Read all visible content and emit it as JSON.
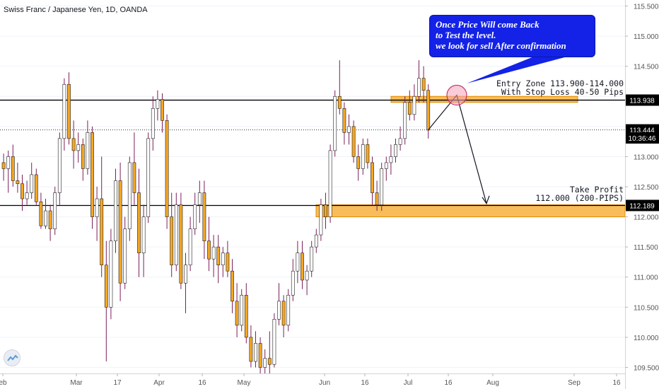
{
  "header": {
    "title": "Swiss Franc / Japanese Yen, 1D, OANDA"
  },
  "note": {
    "lines": [
      "Once Price Will come Back",
      "to Test the level.",
      "we look for sell After confirmation"
    ],
    "color": "#1322e6"
  },
  "entry": {
    "line1": "Entry Zone 113.900-114.000",
    "line2": "With Stop Loss 40-50 Pips"
  },
  "take_profit": {
    "line1": "Take Profit",
    "line2": "112.000 (200-PIPS)"
  },
  "colors": {
    "bull": "#ffffff",
    "bear": "#f5a623",
    "wick": "#7b1f5a",
    "outline": "#222222",
    "zone": "#f5a623",
    "axis_text": "#555555",
    "tag_black": "#000000"
  },
  "price_tags": [
    {
      "value": 113.938,
      "label": "113.938",
      "style": "black"
    },
    {
      "value": 113.444,
      "label": "113.444",
      "style": "black"
    },
    {
      "value": 113.31,
      "label": "10:36:46",
      "style": "black"
    },
    {
      "value": 112.189,
      "label": "112.189",
      "style": "black"
    }
  ],
  "chart_data": {
    "type": "candlestick",
    "title": "Swiss Franc / Japanese Yen, 1D, OANDA",
    "ylim": [
      109.4,
      115.6
    ],
    "y_ticks": [
      "115.500",
      "115.000",
      "114.500",
      "114.000",
      "113.500",
      "113.000",
      "112.500",
      "112.000",
      "111.500",
      "111.000",
      "110.500",
      "110.000",
      "109.500"
    ],
    "x_ticks": [
      "eb",
      "Mar",
      "17",
      "Apr",
      "16",
      "May",
      "Jun",
      "16",
      "Jul",
      "16",
      "Aug",
      "Sep",
      "16"
    ],
    "levels": [
      {
        "name": "resistance",
        "value": 113.938
      },
      {
        "name": "last-price",
        "value": 113.444
      },
      {
        "name": "support",
        "value": 112.189
      }
    ],
    "zones": [
      {
        "name": "entry-zone",
        "from": 113.9,
        "to": 114.0
      },
      {
        "name": "take-profit-zone",
        "from": 112.0,
        "to": 112.2
      }
    ],
    "candles": [
      {
        "o": 112.9,
        "h": 113.05,
        "l": 112.6,
        "c": 112.8
      },
      {
        "o": 112.8,
        "h": 113.1,
        "l": 112.4,
        "c": 113.0
      },
      {
        "o": 113.0,
        "h": 113.2,
        "l": 112.5,
        "c": 112.6
      },
      {
        "o": 112.6,
        "h": 112.9,
        "l": 112.4,
        "c": 112.55
      },
      {
        "o": 112.55,
        "h": 112.7,
        "l": 112.1,
        "c": 112.3
      },
      {
        "o": 112.3,
        "h": 112.6,
        "l": 112.2,
        "c": 112.4
      },
      {
        "o": 112.4,
        "h": 112.9,
        "l": 112.3,
        "c": 112.7
      },
      {
        "o": 112.7,
        "h": 112.8,
        "l": 112.2,
        "c": 112.25
      },
      {
        "o": 112.25,
        "h": 112.4,
        "l": 111.8,
        "c": 111.85
      },
      {
        "o": 111.85,
        "h": 112.3,
        "l": 111.8,
        "c": 112.1
      },
      {
        "o": 112.1,
        "h": 112.2,
        "l": 111.6,
        "c": 111.8
      },
      {
        "o": 111.8,
        "h": 112.5,
        "l": 111.7,
        "c": 112.4
      },
      {
        "o": 112.4,
        "h": 113.4,
        "l": 112.2,
        "c": 113.3
      },
      {
        "o": 113.3,
        "h": 114.3,
        "l": 113.1,
        "c": 114.2
      },
      {
        "o": 114.2,
        "h": 114.4,
        "l": 113.2,
        "c": 113.3
      },
      {
        "o": 113.3,
        "h": 113.6,
        "l": 112.8,
        "c": 113.1
      },
      {
        "o": 113.1,
        "h": 113.4,
        "l": 112.9,
        "c": 113.2
      },
      {
        "o": 113.2,
        "h": 113.3,
        "l": 112.6,
        "c": 112.8
      },
      {
        "o": 112.8,
        "h": 113.6,
        "l": 112.7,
        "c": 113.4
      },
      {
        "o": 113.4,
        "h": 113.5,
        "l": 111.8,
        "c": 112.0
      },
      {
        "o": 112.0,
        "h": 112.5,
        "l": 111.6,
        "c": 112.3
      },
      {
        "o": 112.3,
        "h": 113.0,
        "l": 111.0,
        "c": 111.2
      },
      {
        "o": 111.2,
        "h": 111.6,
        "l": 109.6,
        "c": 110.5
      },
      {
        "o": 110.5,
        "h": 111.8,
        "l": 110.3,
        "c": 111.6
      },
      {
        "o": 111.6,
        "h": 112.8,
        "l": 111.4,
        "c": 112.6
      },
      {
        "o": 112.6,
        "h": 112.9,
        "l": 110.6,
        "c": 110.9
      },
      {
        "o": 110.9,
        "h": 112.0,
        "l": 110.8,
        "c": 111.8
      },
      {
        "o": 111.8,
        "h": 113.0,
        "l": 111.6,
        "c": 112.9
      },
      {
        "o": 112.9,
        "h": 113.4,
        "l": 112.2,
        "c": 112.4
      },
      {
        "o": 112.4,
        "h": 112.8,
        "l": 111.0,
        "c": 111.4
      },
      {
        "o": 111.4,
        "h": 112.2,
        "l": 111.0,
        "c": 112.0
      },
      {
        "o": 112.0,
        "h": 113.4,
        "l": 111.9,
        "c": 113.3
      },
      {
        "o": 113.3,
        "h": 114.0,
        "l": 113.1,
        "c": 113.8
      },
      {
        "o": 113.8,
        "h": 114.1,
        "l": 113.6,
        "c": 113.95
      },
      {
        "o": 113.95,
        "h": 114.05,
        "l": 113.4,
        "c": 113.6
      },
      {
        "o": 113.6,
        "h": 113.7,
        "l": 111.8,
        "c": 112.0
      },
      {
        "o": 112.0,
        "h": 112.4,
        "l": 111.0,
        "c": 111.2
      },
      {
        "o": 111.2,
        "h": 112.4,
        "l": 111.1,
        "c": 112.2
      },
      {
        "o": 112.2,
        "h": 112.4,
        "l": 110.8,
        "c": 110.9
      },
      {
        "o": 110.9,
        "h": 111.4,
        "l": 110.4,
        "c": 111.2
      },
      {
        "o": 111.2,
        "h": 112.0,
        "l": 111.1,
        "c": 111.8
      },
      {
        "o": 111.8,
        "h": 112.4,
        "l": 111.7,
        "c": 112.2
      },
      {
        "o": 112.2,
        "h": 112.6,
        "l": 111.9,
        "c": 112.4
      },
      {
        "o": 112.4,
        "h": 112.6,
        "l": 111.3,
        "c": 111.6
      },
      {
        "o": 111.6,
        "h": 112.0,
        "l": 111.1,
        "c": 111.3
      },
      {
        "o": 111.3,
        "h": 111.7,
        "l": 111.0,
        "c": 111.5
      },
      {
        "o": 111.5,
        "h": 111.7,
        "l": 110.9,
        "c": 111.2
      },
      {
        "o": 111.2,
        "h": 111.5,
        "l": 111.0,
        "c": 111.4
      },
      {
        "o": 111.4,
        "h": 111.6,
        "l": 111.0,
        "c": 111.1
      },
      {
        "o": 111.1,
        "h": 111.3,
        "l": 110.4,
        "c": 110.6
      },
      {
        "o": 110.6,
        "h": 110.9,
        "l": 110.0,
        "c": 110.2
      },
      {
        "o": 110.2,
        "h": 110.8,
        "l": 110.1,
        "c": 110.7
      },
      {
        "o": 110.7,
        "h": 110.9,
        "l": 109.9,
        "c": 110.0
      },
      {
        "o": 110.0,
        "h": 110.2,
        "l": 109.5,
        "c": 109.6
      },
      {
        "o": 109.6,
        "h": 110.1,
        "l": 109.5,
        "c": 109.9
      },
      {
        "o": 109.9,
        "h": 110.0,
        "l": 109.4,
        "c": 109.5
      },
      {
        "o": 109.5,
        "h": 109.8,
        "l": 109.4,
        "c": 109.65
      },
      {
        "o": 109.65,
        "h": 110.1,
        "l": 109.4,
        "c": 109.55
      },
      {
        "o": 109.55,
        "h": 110.4,
        "l": 109.5,
        "c": 110.3
      },
      {
        "o": 110.3,
        "h": 110.9,
        "l": 110.2,
        "c": 110.6
      },
      {
        "o": 110.6,
        "h": 110.7,
        "l": 110.0,
        "c": 110.2
      },
      {
        "o": 110.2,
        "h": 110.8,
        "l": 110.1,
        "c": 110.7
      },
      {
        "o": 110.7,
        "h": 111.3,
        "l": 110.6,
        "c": 111.1
      },
      {
        "o": 111.1,
        "h": 111.6,
        "l": 110.9,
        "c": 111.4
      },
      {
        "o": 111.4,
        "h": 111.6,
        "l": 110.8,
        "c": 110.95
      },
      {
        "o": 110.95,
        "h": 111.2,
        "l": 110.7,
        "c": 111.1
      },
      {
        "o": 111.1,
        "h": 111.6,
        "l": 111.0,
        "c": 111.5
      },
      {
        "o": 111.5,
        "h": 111.8,
        "l": 111.4,
        "c": 111.7
      },
      {
        "o": 111.7,
        "h": 112.3,
        "l": 111.6,
        "c": 112.2
      },
      {
        "o": 112.2,
        "h": 112.4,
        "l": 111.8,
        "c": 112.0
      },
      {
        "o": 112.0,
        "h": 113.2,
        "l": 111.9,
        "c": 113.1
      },
      {
        "o": 113.1,
        "h": 114.1,
        "l": 113.0,
        "c": 114.0
      },
      {
        "o": 114.0,
        "h": 114.6,
        "l": 113.7,
        "c": 113.8
      },
      {
        "o": 113.8,
        "h": 113.9,
        "l": 113.2,
        "c": 113.4
      },
      {
        "o": 113.4,
        "h": 113.7,
        "l": 113.2,
        "c": 113.5
      },
      {
        "o": 113.5,
        "h": 113.6,
        "l": 112.9,
        "c": 113.0
      },
      {
        "o": 113.0,
        "h": 113.2,
        "l": 112.6,
        "c": 112.8
      },
      {
        "o": 112.8,
        "h": 113.3,
        "l": 112.7,
        "c": 113.2
      },
      {
        "o": 113.2,
        "h": 113.3,
        "l": 112.8,
        "c": 112.9
      },
      {
        "o": 112.9,
        "h": 113.0,
        "l": 112.2,
        "c": 112.4
      },
      {
        "o": 112.4,
        "h": 112.6,
        "l": 112.1,
        "c": 112.2
      },
      {
        "o": 112.2,
        "h": 112.9,
        "l": 112.1,
        "c": 112.8
      },
      {
        "o": 112.8,
        "h": 113.0,
        "l": 112.6,
        "c": 112.9
      },
      {
        "o": 112.9,
        "h": 113.2,
        "l": 112.7,
        "c": 113.0
      },
      {
        "o": 113.0,
        "h": 113.3,
        "l": 112.9,
        "c": 113.2
      },
      {
        "o": 113.2,
        "h": 113.5,
        "l": 113.1,
        "c": 113.3
      },
      {
        "o": 113.3,
        "h": 114.0,
        "l": 113.2,
        "c": 113.9
      },
      {
        "o": 113.9,
        "h": 114.1,
        "l": 113.6,
        "c": 113.7
      },
      {
        "o": 113.7,
        "h": 114.2,
        "l": 113.6,
        "c": 114.0
      },
      {
        "o": 114.0,
        "h": 114.6,
        "l": 113.9,
        "c": 114.3
      },
      {
        "o": 114.3,
        "h": 114.5,
        "l": 113.9,
        "c": 114.1
      },
      {
        "o": 114.1,
        "h": 114.2,
        "l": 113.3,
        "c": 113.44
      }
    ]
  }
}
